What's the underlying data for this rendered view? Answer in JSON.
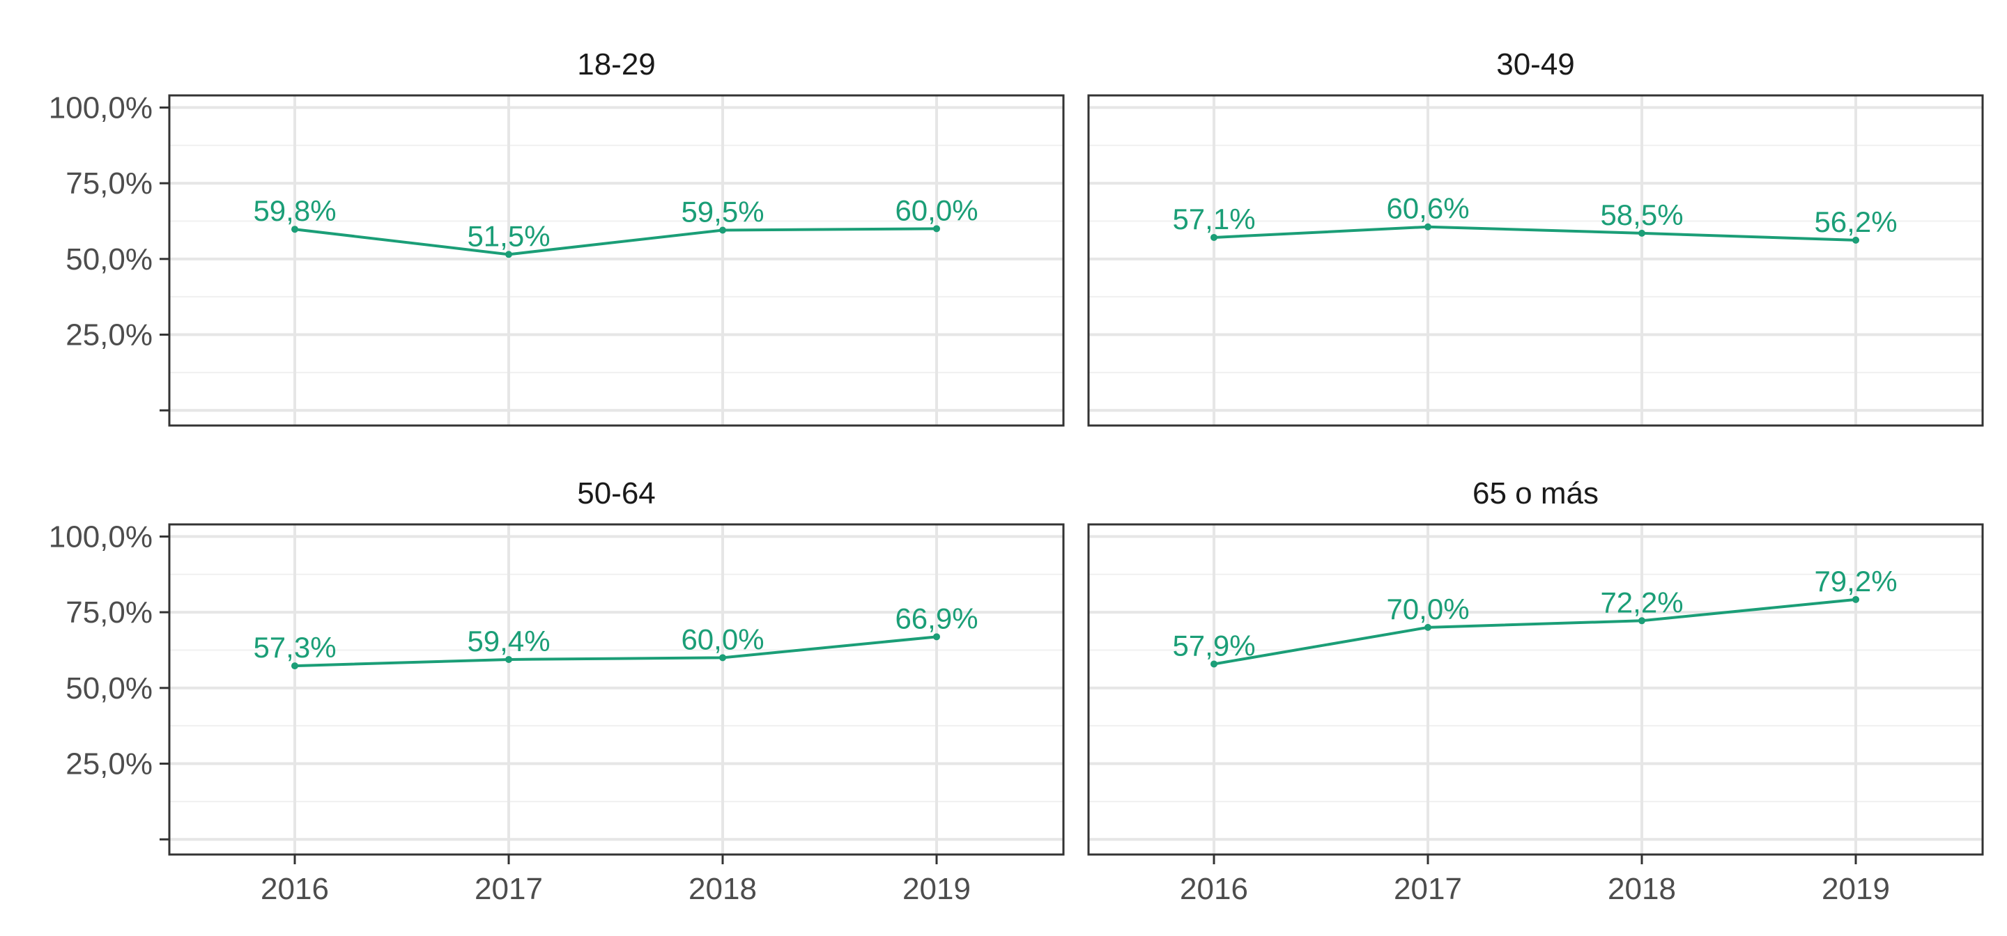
{
  "chart_data": {
    "type": "line",
    "layout": "facet-grid 2x2",
    "x": [
      "2016",
      "2017",
      "2018",
      "2019"
    ],
    "y_ticks": [
      "100,0%",
      "75,0%",
      "50,0%",
      "25,0%"
    ],
    "y_tick_values": [
      100,
      75,
      50,
      25
    ],
    "ylim": [
      -5,
      104
    ],
    "line_color": "#1b9e77",
    "panels": [
      {
        "title": "18-29",
        "values": [
          59.8,
          51.5,
          59.5,
          60.0
        ],
        "labels": [
          "59,8%",
          "51,5%",
          "59,5%",
          "60,0%"
        ]
      },
      {
        "title": "30-49",
        "values": [
          57.1,
          60.6,
          58.5,
          56.2
        ],
        "labels": [
          "57,1%",
          "60,6%",
          "58,5%",
          "56,2%"
        ]
      },
      {
        "title": "50-64",
        "values": [
          57.3,
          59.4,
          60.0,
          66.9
        ],
        "labels": [
          "57,3%",
          "59,4%",
          "60,0%",
          "66,9%"
        ]
      },
      {
        "title": "65 o más",
        "values": [
          57.9,
          70.0,
          72.2,
          79.2
        ],
        "labels": [
          "57,9%",
          "70,0%",
          "72,2%",
          "79,2%"
        ]
      }
    ]
  }
}
